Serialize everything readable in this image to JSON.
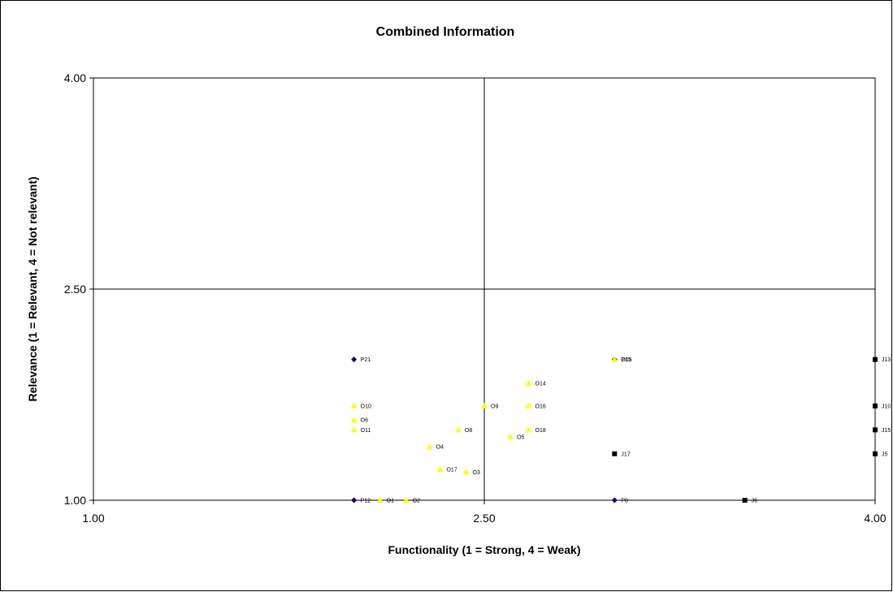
{
  "chart_data": {
    "type": "scatter",
    "title": "Combined Information",
    "xlabel": "Functionality (1 = Strong, 4 = Weak)",
    "ylabel": "Relevance (1 = Relevant, 4 = Not relevant)",
    "xlim": [
      1.0,
      4.0
    ],
    "ylim": [
      1.0,
      4.0
    ],
    "xticks": [
      "1.00",
      "2.50",
      "4.00"
    ],
    "yticks": [
      "1.00",
      "2.50",
      "4.00"
    ],
    "quadrant_lines": {
      "x": 2.5,
      "y": 2.5
    },
    "grid": false,
    "legend": "none",
    "series": [
      {
        "marker": "diamond",
        "color": "#000080",
        "points": [
          {
            "label": "P21",
            "x": 2.0,
            "y": 2.0
          },
          {
            "label": "P12",
            "x": 2.0,
            "y": 1.0
          },
          {
            "label": "P8",
            "x": 3.0,
            "y": 1.0
          },
          {
            "label": "P15",
            "x": 3.0,
            "y": 2.0
          }
        ]
      },
      {
        "marker": "triangle",
        "color": "#ffff00",
        "points": [
          {
            "label": "O10",
            "x": 2.0,
            "y": 1.67
          },
          {
            "label": "O6",
            "x": 2.0,
            "y": 1.57
          },
          {
            "label": "O11",
            "x": 2.0,
            "y": 1.5
          },
          {
            "label": "O1",
            "x": 2.1,
            "y": 1.0
          },
          {
            "label": "O2",
            "x": 2.2,
            "y": 1.0
          },
          {
            "label": "O4",
            "x": 2.29,
            "y": 1.38
          },
          {
            "label": "O17",
            "x": 2.33,
            "y": 1.22
          },
          {
            "label": "O3",
            "x": 2.43,
            "y": 1.2
          },
          {
            "label": "O8",
            "x": 2.4,
            "y": 1.5
          },
          {
            "label": "O9",
            "x": 2.5,
            "y": 1.67
          },
          {
            "label": "O5",
            "x": 2.6,
            "y": 1.45
          },
          {
            "label": "O14",
            "x": 2.67,
            "y": 1.83
          },
          {
            "label": "O16",
            "x": 2.67,
            "y": 1.67
          },
          {
            "label": "O18",
            "x": 2.67,
            "y": 1.5
          },
          {
            "label": "O15",
            "x": 3.0,
            "y": 2.0
          }
        ]
      },
      {
        "marker": "square",
        "color": "#000000",
        "points": [
          {
            "label": "J17",
            "x": 3.0,
            "y": 1.33
          },
          {
            "label": "J6",
            "x": 3.5,
            "y": 1.0
          },
          {
            "label": "J13",
            "x": 4.0,
            "y": 2.0
          },
          {
            "label": "J10",
            "x": 4.0,
            "y": 1.67
          },
          {
            "label": "J15",
            "x": 4.0,
            "y": 1.5
          },
          {
            "label": "J5",
            "x": 4.0,
            "y": 1.33
          }
        ]
      }
    ]
  }
}
